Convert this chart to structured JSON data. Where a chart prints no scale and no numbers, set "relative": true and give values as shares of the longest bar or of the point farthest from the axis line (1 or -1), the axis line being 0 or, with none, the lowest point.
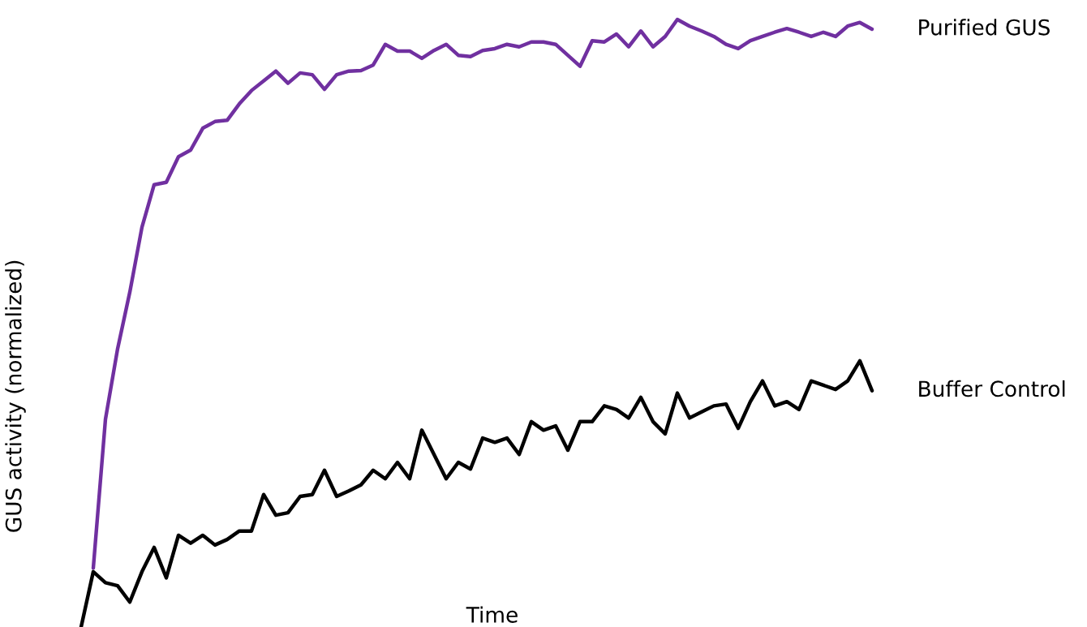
{
  "chart_data": {
    "type": "line",
    "relative": true,
    "xlabel": "Time",
    "ylabel": "GUS activity (normalized)",
    "categories": [
      null,
      null,
      null,
      null,
      null,
      null,
      null,
      null,
      null,
      null,
      null,
      null,
      null,
      null,
      null,
      null,
      null,
      null,
      null,
      null,
      null,
      null,
      null,
      null,
      null,
      null,
      null,
      null,
      null,
      null,
      null,
      null,
      null,
      null,
      null,
      null,
      null,
      null,
      null,
      null,
      null,
      null,
      null,
      null,
      null,
      null,
      null,
      null,
      null,
      null,
      null,
      null,
      null,
      null,
      null,
      null,
      null,
      null,
      null,
      null,
      null,
      null,
      null,
      null,
      null,
      null
    ],
    "legend": false,
    "grid": false,
    "marker": "none",
    "line_style": "solid",
    "series": [
      {
        "name": "Purified GUS",
        "color": "#7030a0",
        "values": [
          null,
          0.097,
          0.342,
          0.458,
          0.551,
          0.658,
          0.728,
          0.732,
          0.774,
          0.785,
          0.821,
          0.832,
          0.834,
          0.861,
          0.883,
          0.899,
          0.915,
          0.895,
          0.912,
          0.909,
          0.885,
          0.909,
          0.915,
          0.916,
          0.925,
          0.959,
          0.948,
          0.948,
          0.936,
          0.949,
          0.959,
          0.941,
          0.939,
          0.949,
          0.952,
          0.959,
          0.955,
          0.963,
          0.963,
          0.959,
          0.941,
          0.923,
          0.965,
          0.963,
          0.976,
          0.955,
          0.981,
          0.955,
          0.972,
          1.0,
          0.989,
          0.981,
          0.972,
          0.959,
          0.952,
          0.965,
          0.972,
          0.979,
          0.985,
          0.979,
          0.972,
          0.979,
          0.972,
          0.989,
          0.995,
          0.984
        ]
      },
      {
        "name": "Buffer Control",
        "color": "#000000",
        "values": [
          0,
          0.091,
          0.073,
          0.068,
          0.041,
          0.091,
          0.131,
          0.081,
          0.151,
          0.138,
          0.151,
          0.135,
          0.144,
          0.158,
          0.158,
          0.218,
          0.184,
          0.188,
          0.215,
          0.218,
          0.258,
          0.215,
          0.224,
          0.234,
          0.258,
          0.244,
          0.271,
          0.244,
          0.324,
          0.284,
          0.244,
          0.271,
          0.26,
          0.311,
          0.304,
          0.311,
          0.284,
          0.338,
          0.324,
          0.331,
          0.291,
          0.338,
          0.338,
          0.364,
          0.358,
          0.344,
          0.378,
          0.338,
          0.318,
          0.385,
          0.344,
          0.354,
          0.364,
          0.367,
          0.327,
          0.371,
          0.405,
          0.364,
          0.371,
          0.358,
          0.405,
          0.398,
          0.391,
          0.405,
          0.438,
          0.389
        ]
      }
    ]
  }
}
